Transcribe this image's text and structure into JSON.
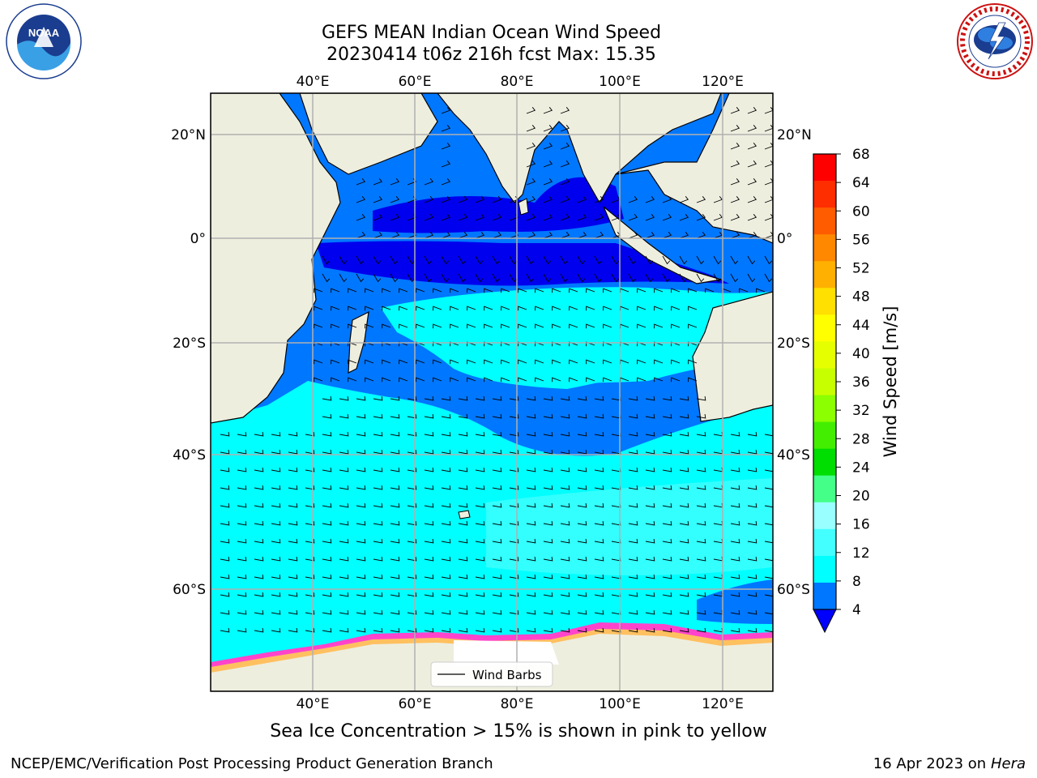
{
  "title": {
    "line1": "GEFS MEAN Indian Ocean Wind Speed",
    "line2": "20230414 t06z 216h fcst   Max: 15.35"
  },
  "logos": {
    "left": {
      "text": "NOAA",
      "ring_text": "NATIONAL OCEANIC AND ATMOSPHERIC ADMINISTRATION · U.S. DEPARTMENT OF COMMERCE"
    },
    "right": {
      "ring_text": "NATIONAL WEATHER SERVICE"
    }
  },
  "map": {
    "longitude_labels_top": [
      "40°E",
      "60°E",
      "80°E",
      "100°E",
      "120°E"
    ],
    "longitude_labels_bottom": [
      "40°E",
      "60°E",
      "80°E",
      "100°E",
      "120°E"
    ],
    "latitude_labels_left": [
      "20°N",
      "0°",
      "20°S",
      "40°S",
      "60°S"
    ],
    "latitude_labels_right": [
      "20°N",
      "0°",
      "20°S",
      "40°S",
      "60°S"
    ],
    "legend_label": "Wind Barbs",
    "extent": {
      "lon": [
        20,
        130
      ],
      "lat": [
        -75,
        28
      ]
    },
    "colors": {
      "land": "#eeeedf",
      "ocean_4_8": "#0070ff",
      "ocean_8_12": "#00ffff",
      "ocean_12_16": "#33ffff",
      "ocean_0_4": "#0000ee",
      "sea_ice": "#ff44cc"
    }
  },
  "colorbar": {
    "label": "Wind Speed [m/s]",
    "ticks": [
      "68",
      "64",
      "60",
      "56",
      "52",
      "48",
      "44",
      "40",
      "36",
      "32",
      "28",
      "24",
      "20",
      "16",
      "12",
      "8",
      "4"
    ],
    "bands": [
      "#ff0000",
      "#ff2e00",
      "#ff5c00",
      "#ff8800",
      "#ffb000",
      "#ffe000",
      "#ffff00",
      "#e6ff00",
      "#c8ff00",
      "#8cff00",
      "#44ee00",
      "#00dd00",
      "#44ff88",
      "#99ffff",
      "#44ffff",
      "#00ffff",
      "#0077ff"
    ],
    "extend_color": "#0000ff"
  },
  "caption": "Sea Ice Concentration > 15% is shown in pink to yellow",
  "footer": {
    "left": "NCEP/EMC/Verification Post Processing Product Generation Branch",
    "right_date": "16 Apr 2023 on ",
    "right_host": "Hera"
  }
}
